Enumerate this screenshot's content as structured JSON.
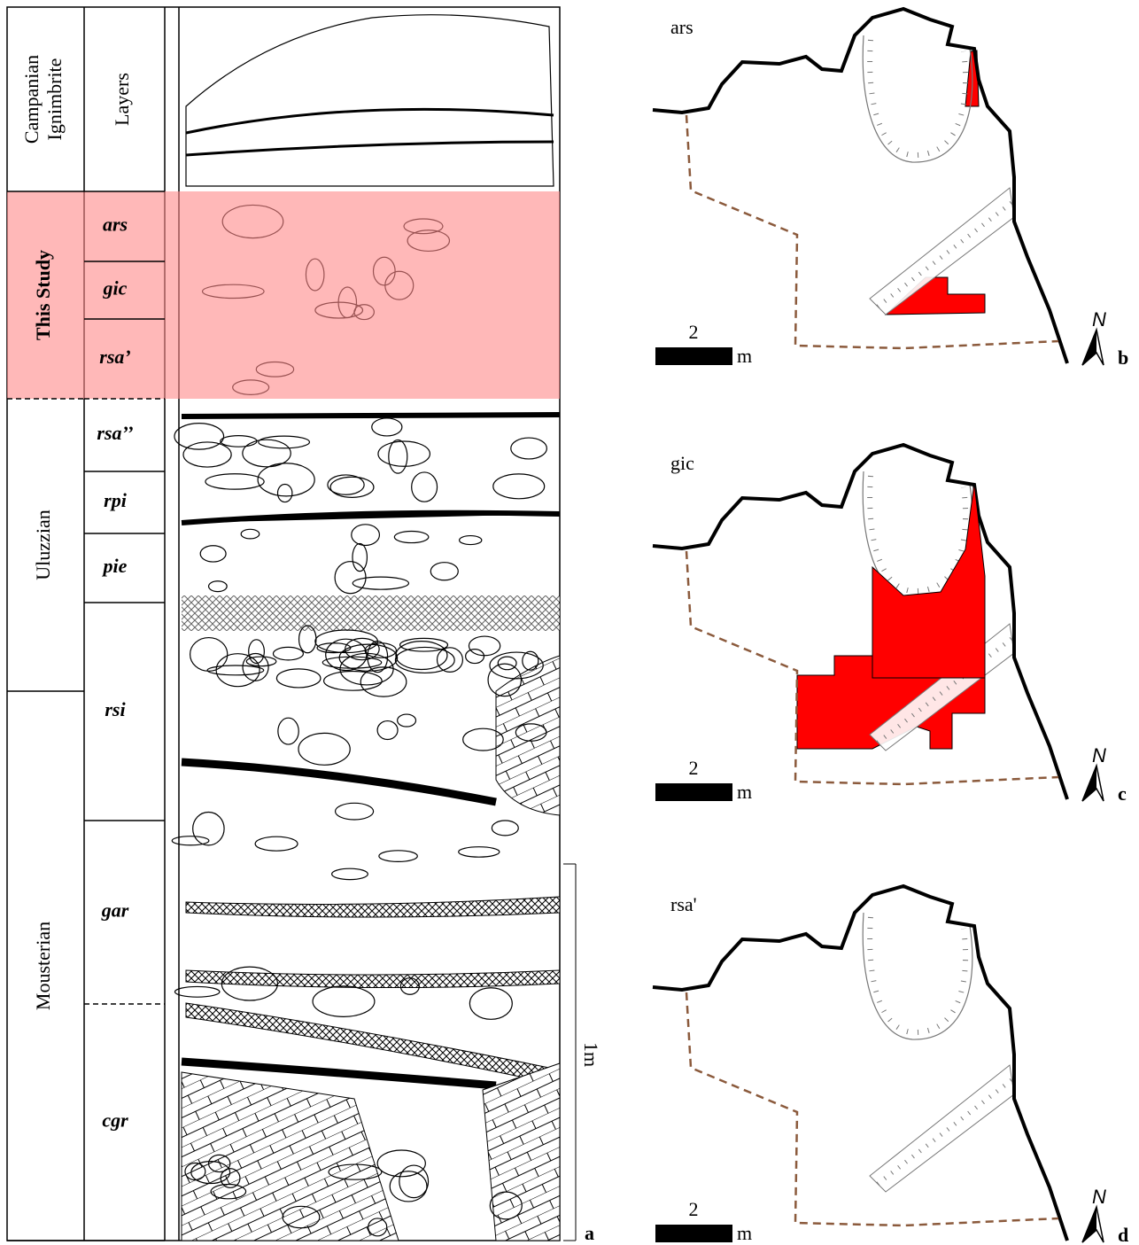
{
  "panel_a": {
    "headers": {
      "period": [
        "Campanian",
        "Ignimbrite"
      ],
      "layers": "Layers"
    },
    "periods": [
      "This Study",
      "Uluzzian",
      "Mousterian"
    ],
    "layers": [
      "ars",
      "gic",
      "rsa’",
      "rsa’’",
      "rpi",
      "pie",
      "rsi",
      "gar",
      "cgr"
    ],
    "scale": "1m",
    "label": "a"
  },
  "maps": [
    {
      "title": "ars",
      "scale_value": "2",
      "scale_unit": "m",
      "north": "N",
      "label": "b"
    },
    {
      "title": "gic",
      "scale_value": "2",
      "scale_unit": "m",
      "north": "N",
      "label": "c"
    },
    {
      "title": "rsa'",
      "scale_value": "2",
      "scale_unit": "m",
      "north": "N",
      "label": "d"
    }
  ]
}
